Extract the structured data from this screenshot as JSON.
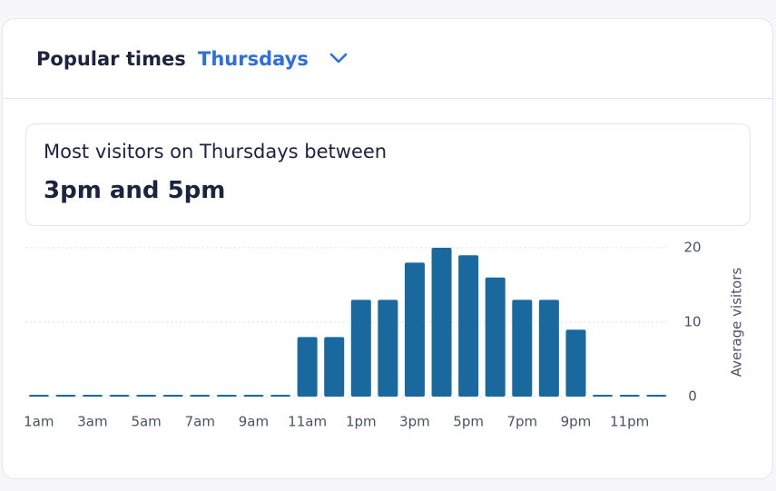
{
  "header": {
    "title": "Popular times",
    "day": "Thursdays"
  },
  "summary": {
    "line": "Most visitors on Thursdays between",
    "highlight": "3pm and 5pm"
  },
  "chart_data": {
    "type": "bar",
    "categories": [
      "1am",
      null,
      "3am",
      null,
      "5am",
      null,
      "7am",
      null,
      "9am",
      null,
      "11am",
      null,
      "1pm",
      null,
      "3pm",
      null,
      "5pm",
      null,
      "7pm",
      null,
      "9pm",
      null,
      "11pm",
      null
    ],
    "values": [
      0,
      0,
      0,
      0,
      0,
      0,
      0,
      0,
      0,
      0,
      8,
      8,
      13,
      13,
      18,
      20,
      19,
      16,
      13,
      13,
      9,
      0,
      0,
      0
    ],
    "color": "#19699f",
    "ylabel": "Average visitors",
    "ylim": [
      0,
      20
    ],
    "yticks": [
      0,
      10,
      20
    ],
    "grid": true
  }
}
